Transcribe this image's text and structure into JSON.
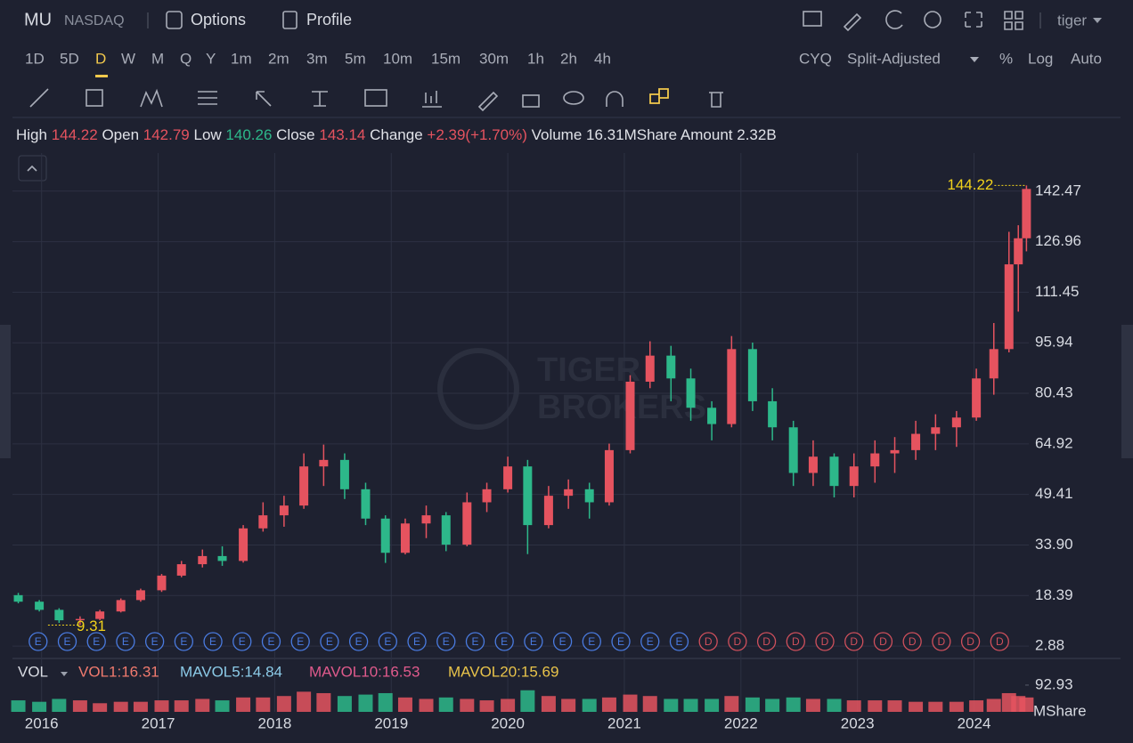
{
  "header": {
    "symbol": "MU",
    "exchange": "NASDAQ",
    "tabs": [
      "Options",
      "Profile"
    ],
    "user": "tiger"
  },
  "periods": {
    "items": [
      "1D",
      "5D",
      "D",
      "W",
      "M",
      "Q",
      "Y",
      "1m",
      "2m",
      "3m",
      "5m",
      "10m",
      "15m",
      "30m",
      "1h",
      "2h",
      "4h"
    ],
    "active": 2
  },
  "controls": [
    "CYQ",
    "Split-Adjusted",
    "%",
    "Log",
    "Auto"
  ],
  "quote": [
    {
      "label": "High",
      "value": "144.22",
      "color": "#e5535f"
    },
    {
      "label": "Open",
      "value": "142.79",
      "color": "#e5535f"
    },
    {
      "label": "Low",
      "value": "140.26",
      "color": "#2db88a"
    },
    {
      "label": "Close",
      "value": "143.14",
      "color": "#e5535f"
    },
    {
      "label": "Change",
      "value": "+2.39(+1.70%)",
      "color": "#e5535f"
    },
    {
      "label": "Volume",
      "value": "16.31MShare",
      "color": "#e0e2e8"
    },
    {
      "label": "Amount",
      "value": "2.32B",
      "color": "#e0e2e8"
    }
  ],
  "chart_data": {
    "type": "candlestick",
    "up_color": "#e5535f",
    "down_color": "#2db88a",
    "grid": true,
    "watermark": [
      "TIGER",
      "BROKERS"
    ],
    "x": [
      2015.8,
      2015.98,
      2016.15,
      2016.33,
      2016.5,
      2016.68,
      2016.85,
      2017.03,
      2017.2,
      2017.38,
      2017.55,
      2017.73,
      2017.9,
      2018.08,
      2018.25,
      2018.42,
      2018.6,
      2018.78,
      2018.95,
      2019.12,
      2019.3,
      2019.47,
      2019.65,
      2019.82,
      2020.0,
      2020.17,
      2020.35,
      2020.52,
      2020.7,
      2020.87,
      2021.05,
      2021.22,
      2021.4,
      2021.57,
      2021.75,
      2021.92,
      2022.1,
      2022.27,
      2022.45,
      2022.62,
      2022.8,
      2022.97,
      2023.15,
      2023.32,
      2023.5,
      2023.67,
      2023.85,
      2024.02,
      2024.17,
      2024.3,
      2024.38,
      2024.45
    ],
    "open": [
      18.5,
      16.5,
      14,
      10.8,
      11.2,
      13.5,
      17,
      20,
      24.5,
      28,
      30.5,
      29,
      39,
      43,
      46,
      58,
      60,
      51,
      42,
      31.5,
      40.5,
      43,
      34,
      47,
      51,
      58,
      40,
      49,
      51,
      47,
      63,
      84,
      92,
      85,
      76,
      71,
      94,
      78,
      70,
      56,
      61,
      52,
      58,
      62,
      63,
      68,
      70,
      73,
      85,
      94,
      120,
      128
    ],
    "high": [
      19.2,
      17,
      14.5,
      12,
      14,
      17.5,
      20.5,
      25,
      29,
      32.5,
      33.5,
      40,
      47,
      49,
      62,
      64.7,
      62,
      53,
      43,
      42,
      46,
      44,
      50,
      53,
      61,
      60,
      52,
      54,
      53,
      65,
      86,
      96.4,
      95,
      88,
      78,
      98,
      96,
      82,
      72,
      66,
      62,
      62,
      66,
      67,
      72,
      74,
      75,
      88,
      102,
      130,
      132,
      144.22
    ],
    "low": [
      16,
      13.5,
      10,
      9.31,
      10.8,
      13.2,
      16.5,
      19.5,
      24,
      27,
      27.5,
      28.5,
      38,
      39.5,
      45,
      52,
      48,
      40,
      28.4,
      31,
      36,
      32,
      33.5,
      44,
      50,
      31.1,
      39,
      45,
      42,
      46,
      62,
      82,
      78,
      72,
      66,
      70,
      75,
      66,
      52,
      52,
      48.5,
      48.5,
      53,
      56,
      60,
      63,
      64,
      72,
      80,
      93,
      105.5,
      124
    ],
    "close": [
      16.5,
      14,
      10.8,
      11.2,
      13.5,
      17,
      20,
      24.5,
      28,
      30.5,
      29,
      39,
      43,
      46,
      58,
      60,
      51,
      42,
      31.5,
      40.5,
      43,
      34,
      47,
      51,
      58,
      40,
      49,
      51,
      47,
      63,
      84,
      92,
      85,
      76,
      71,
      94,
      78,
      70,
      56,
      61,
      52,
      58,
      62,
      63,
      68,
      70,
      73,
      85,
      94,
      120,
      128,
      143.14
    ],
    "volume": [
      40,
      35,
      45,
      40,
      30,
      35,
      35,
      40,
      40,
      45,
      40,
      50,
      50,
      55,
      70,
      65,
      55,
      60,
      65,
      50,
      45,
      50,
      45,
      40,
      45,
      75,
      55,
      45,
      45,
      50,
      60,
      55,
      45,
      45,
      45,
      55,
      50,
      45,
      50,
      45,
      45,
      40,
      40,
      40,
      35,
      35,
      35,
      40,
      45,
      65,
      55,
      50
    ],
    "xlim": [
      2015.75,
      2024.47
    ],
    "xticks": [
      2016,
      2017,
      2018,
      2019,
      2020,
      2021,
      2022,
      2023,
      2024
    ],
    "ylim": [
      -0.92,
      154.15
    ],
    "yticks": [
      2.88,
      18.39,
      {
        "value": 33.9,
        "label": "33.90"
      },
      49.41,
      64.92,
      80.43,
      95.94,
      111.45,
      126.96,
      142.47
    ],
    "max_label": 144.22,
    "min_label": 9.31,
    "annotation_color": "#f2d21b",
    "events": [
      {
        "label": "E",
        "color": "#4a7be0",
        "x": [
          2015.97,
          2016.22,
          2016.47,
          2016.72,
          2016.97,
          2017.22,
          2017.47,
          2017.72,
          2017.97,
          2018.22,
          2018.47,
          2018.72,
          2018.97,
          2019.22,
          2019.47,
          2019.72,
          2019.97,
          2020.22,
          2020.47,
          2020.72,
          2020.97,
          2021.22,
          2021.47
        ]
      },
      {
        "label": "D",
        "color": "#d0505c",
        "x": [
          2021.72,
          2021.97,
          2022.22,
          2022.47,
          2022.72,
          2022.97,
          2023.22,
          2023.47,
          2023.72,
          2023.97,
          2024.22
        ]
      }
    ],
    "volume_panel": {
      "label": "VOL",
      "indicators": [
        {
          "text": "VOL1:16.31",
          "color": "#f07a6e"
        },
        {
          "text": "MAVOL5:14.84",
          "color": "#8ccbe8"
        },
        {
          "text": "MAVOL10:16.53",
          "color": "#e05a8c"
        },
        {
          "text": "MAVOL20:15.69",
          "color": "#e8c34a"
        }
      ],
      "ylim": [
        0,
        170
      ],
      "yticks": [
        92.93
      ],
      "unit": "MShare"
    }
  }
}
